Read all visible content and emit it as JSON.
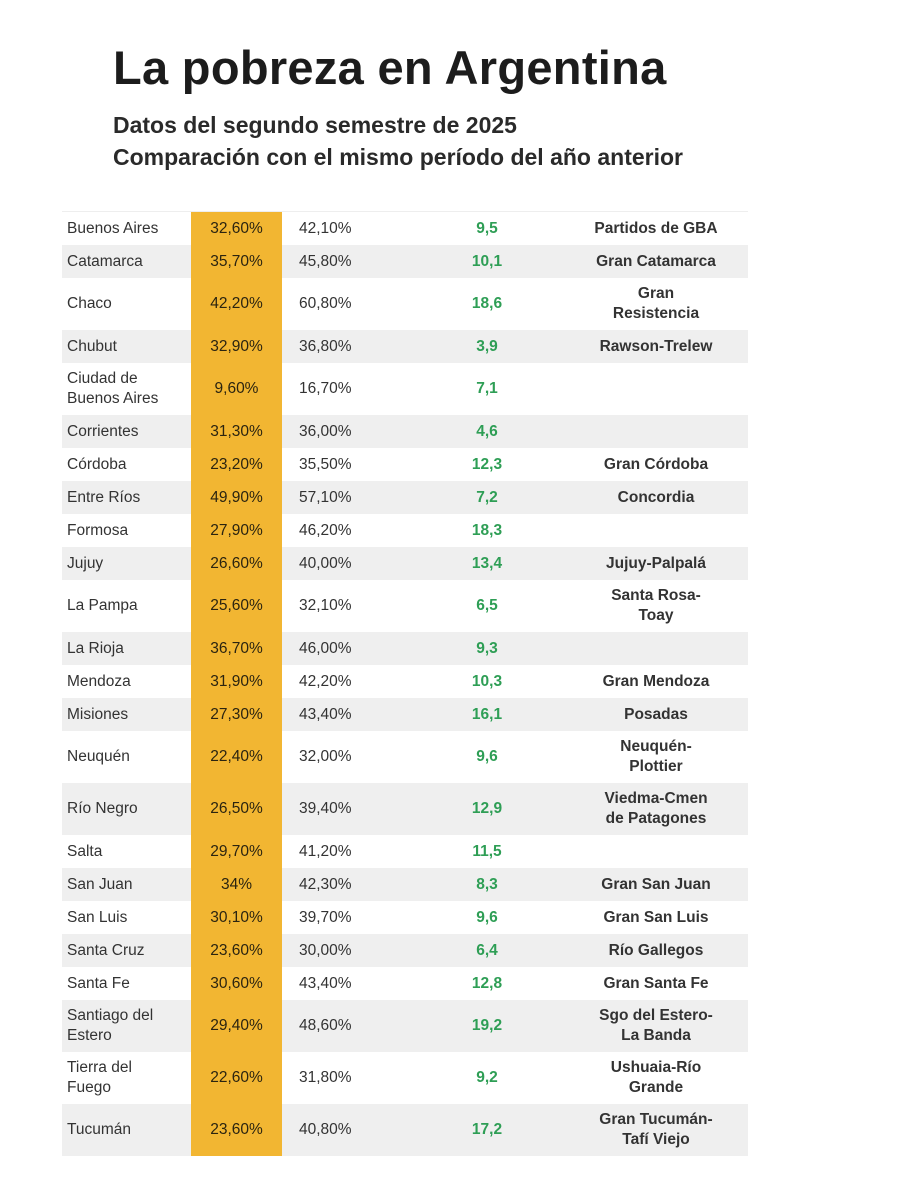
{
  "header": {
    "title": "La pobreza en Argentina",
    "subtitle_1": "Datos del segundo semestre de 2025",
    "subtitle_2": "Comparación con el mismo período del año anterior"
  },
  "colors": {
    "highlight": "#f2b632",
    "positive": "#2e9e55",
    "row_alt": "#efefef"
  },
  "chart_data": {
    "type": "table",
    "title": "La pobreza en Argentina",
    "subtitle": "Datos del segundo semestre de 2025 - Comparación con el mismo período del año anterior",
    "rows": [
      {
        "province": "Buenos Aires",
        "current": "32,60%",
        "previous": "42,10%",
        "diff": "9,5",
        "area": "Partidos de GBA"
      },
      {
        "province": "Catamarca",
        "current": "35,70%",
        "previous": "45,80%",
        "diff": "10,1",
        "area": "Gran Catamarca"
      },
      {
        "province": "Chaco",
        "current": "42,20%",
        "previous": "60,80%",
        "diff": "18,6",
        "area": "Gran\nResistencia"
      },
      {
        "province": "Chubut",
        "current": "32,90%",
        "previous": "36,80%",
        "diff": "3,9",
        "area": "Rawson-Trelew"
      },
      {
        "province": "Ciudad de\nBuenos Aires",
        "current": "9,60%",
        "previous": "16,70%",
        "diff": "7,1",
        "area": ""
      },
      {
        "province": "Corrientes",
        "current": "31,30%",
        "previous": "36,00%",
        "diff": "4,6",
        "area": ""
      },
      {
        "province": "Córdoba",
        "current": "23,20%",
        "previous": "35,50%",
        "diff": "12,3",
        "area": "Gran Córdoba"
      },
      {
        "province": "Entre Ríos",
        "current": "49,90%",
        "previous": "57,10%",
        "diff": "7,2",
        "area": "Concordia"
      },
      {
        "province": "Formosa",
        "current": "27,90%",
        "previous": "46,20%",
        "diff": "18,3",
        "area": ""
      },
      {
        "province": "Jujuy",
        "current": "26,60%",
        "previous": "40,00%",
        "diff": "13,4",
        "area": "Jujuy-Palpalá"
      },
      {
        "province": "La Pampa",
        "current": "25,60%",
        "previous": "32,10%",
        "diff": "6,5",
        "area": "Santa Rosa-\nToay"
      },
      {
        "province": "La Rioja",
        "current": "36,70%",
        "previous": "46,00%",
        "diff": "9,3",
        "area": ""
      },
      {
        "province": "Mendoza",
        "current": "31,90%",
        "previous": "42,20%",
        "diff": "10,3",
        "area": "Gran Mendoza"
      },
      {
        "province": "Misiones",
        "current": "27,30%",
        "previous": "43,40%",
        "diff": "16,1",
        "area": "Posadas"
      },
      {
        "province": "Neuquén",
        "current": "22,40%",
        "previous": "32,00%",
        "diff": "9,6",
        "area": "Neuquén-\nPlottier"
      },
      {
        "province": "Río Negro",
        "current": "26,50%",
        "previous": "39,40%",
        "diff": "12,9",
        "area": "Viedma-Cmen\nde Patagones"
      },
      {
        "province": "Salta",
        "current": "29,70%",
        "previous": "41,20%",
        "diff": "11,5",
        "area": ""
      },
      {
        "province": "San Juan",
        "current": "34%",
        "previous": "42,30%",
        "diff": "8,3",
        "area": "Gran San Juan"
      },
      {
        "province": "San Luis",
        "current": "30,10%",
        "previous": "39,70%",
        "diff": "9,6",
        "area": "Gran San Luis"
      },
      {
        "province": "Santa Cruz",
        "current": "23,60%",
        "previous": "30,00%",
        "diff": "6,4",
        "area": "Río Gallegos"
      },
      {
        "province": "Santa Fe",
        "current": "30,60%",
        "previous": "43,40%",
        "diff": "12,8",
        "area": "Gran Santa Fe"
      },
      {
        "province": "Santiago del\nEstero",
        "current": "29,40%",
        "previous": "48,60%",
        "diff": "19,2",
        "area": "Sgo del Estero-\nLa Banda"
      },
      {
        "province": "Tierra del\nFuego",
        "current": "22,60%",
        "previous": "31,80%",
        "diff": "9,2",
        "area": "Ushuaia-Río\nGrande"
      },
      {
        "province": "Tucumán",
        "current": "23,60%",
        "previous": "40,80%",
        "diff": "17,2",
        "area": "Gran Tucumán-\nTafí Viejo"
      }
    ]
  }
}
